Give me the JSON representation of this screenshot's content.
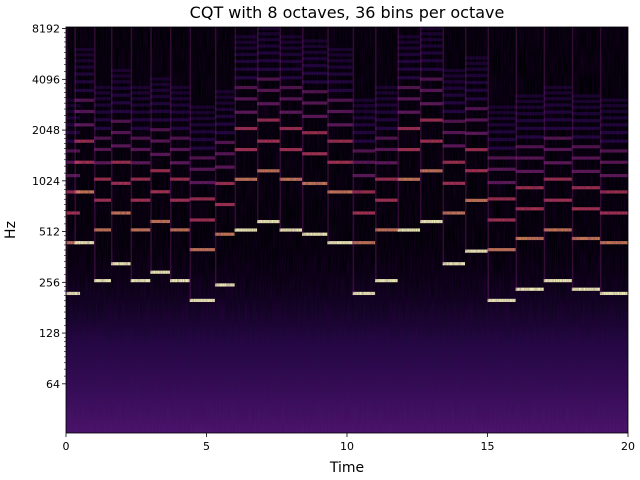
{
  "chart_data": {
    "type": "heatmap",
    "title": "CQT with 8 octaves, 36 bins per octave",
    "xlabel": "Time",
    "ylabel": "Hz",
    "x_scale": "linear",
    "y_scale": "log2",
    "xlim": [
      0,
      20
    ],
    "ylim_hz": [
      32.7,
      8372
    ],
    "x_ticks": [
      0,
      5,
      10,
      15,
      20
    ],
    "x_tick_labels": [
      "0",
      "5",
      "10",
      "15",
      "20"
    ],
    "y_ticks": [
      64,
      128,
      256,
      512,
      1024,
      2048,
      4096,
      8192
    ],
    "y_tick_labels": [
      "64",
      "128",
      "256",
      "512",
      "1024",
      "2048",
      "4096",
      "8192"
    ],
    "colormap": "magma",
    "colormap_stops": [
      "#000004",
      "#3b0f70",
      "#8c2981",
      "#de4968",
      "#fe9f6d",
      "#fcfdbf"
    ],
    "grid": false,
    "legend": "none",
    "prominent_notes_hz": [
      {
        "t0": 0.0,
        "t1": 0.5,
        "hz": 220
      },
      {
        "t0": 0.3,
        "t1": 1.0,
        "hz": 440
      },
      {
        "t0": 1.0,
        "t1": 1.6,
        "hz": 262
      },
      {
        "t0": 1.6,
        "t1": 2.3,
        "hz": 330
      },
      {
        "t0": 2.3,
        "t1": 3.0,
        "hz": 262
      },
      {
        "t0": 3.0,
        "t1": 3.7,
        "hz": 294
      },
      {
        "t0": 3.7,
        "t1": 4.4,
        "hz": 262
      },
      {
        "t0": 4.4,
        "t1": 5.3,
        "hz": 200
      },
      {
        "t0": 5.3,
        "t1": 6.0,
        "hz": 247
      },
      {
        "t0": 6.0,
        "t1": 6.8,
        "hz": 523
      },
      {
        "t0": 6.8,
        "t1": 7.6,
        "hz": 587
      },
      {
        "t0": 7.6,
        "t1": 8.4,
        "hz": 523
      },
      {
        "t0": 8.4,
        "t1": 9.3,
        "hz": 494
      },
      {
        "t0": 9.3,
        "t1": 10.2,
        "hz": 440
      },
      {
        "t0": 10.2,
        "t1": 11.0,
        "hz": 220
      },
      {
        "t0": 11.0,
        "t1": 11.8,
        "hz": 262
      },
      {
        "t0": 11.8,
        "t1": 12.6,
        "hz": 523
      },
      {
        "t0": 12.6,
        "t1": 13.4,
        "hz": 587
      },
      {
        "t0": 13.4,
        "t1": 14.2,
        "hz": 330
      },
      {
        "t0": 14.2,
        "t1": 15.0,
        "hz": 392
      },
      {
        "t0": 15.0,
        "t1": 16.0,
        "hz": 200
      },
      {
        "t0": 16.0,
        "t1": 17.0,
        "hz": 233
      },
      {
        "t0": 17.0,
        "t1": 18.0,
        "hz": 262
      },
      {
        "t0": 18.0,
        "t1": 19.0,
        "hz": 233
      },
      {
        "t0": 19.0,
        "t1": 20.0,
        "hz": 220
      }
    ]
  }
}
